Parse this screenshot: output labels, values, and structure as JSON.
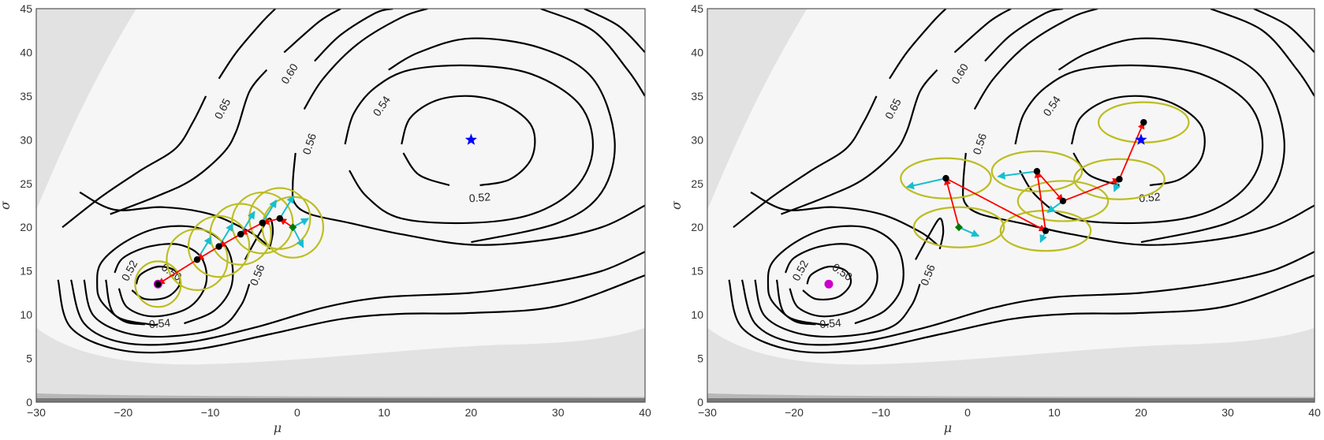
{
  "chart_data": [
    {
      "type": "contour",
      "panel": "left",
      "title": "",
      "xlabel": "μ",
      "ylabel": "σ",
      "xlim": [
        -30,
        40
      ],
      "ylim": [
        0,
        45
      ],
      "xticks": [
        "−30",
        "−20",
        "−10",
        "0",
        "10",
        "20",
        "30",
        "40"
      ],
      "yticks": [
        "0",
        "5",
        "10",
        "15",
        "20",
        "25",
        "30",
        "35",
        "40",
        "45"
      ],
      "grid": false,
      "contour_labels": [
        "0.65",
        "0.60",
        "0.56",
        "0.54",
        "0.52",
        "0.50",
        "0.52",
        "0.54",
        "0.56"
      ],
      "local_minimum": {
        "mu": -16,
        "sigma": 13.5,
        "marker": "magenta-circle"
      },
      "global_minimum": {
        "mu": 20,
        "sigma": 30,
        "marker": "blue-star"
      },
      "start_point": {
        "mu": -0.5,
        "sigma": 20,
        "marker": "green-diamond"
      },
      "trajectory": [
        {
          "mu": -0.5,
          "sigma": 20.0
        },
        {
          "mu": -2.0,
          "sigma": 21.0
        },
        {
          "mu": -4.0,
          "sigma": 20.5
        },
        {
          "mu": -6.5,
          "sigma": 19.2
        },
        {
          "mu": -9.0,
          "sigma": 17.8
        },
        {
          "mu": -11.5,
          "sigma": 16.3
        },
        {
          "mu": -16.0,
          "sigma": 13.5
        }
      ],
      "trust_region_shape": "circle",
      "trust_region_radius": 3.5,
      "series_colors": {
        "path": "#ff0000",
        "gradient": "#17becf",
        "region": "#bcbd22",
        "contour": "#000000"
      }
    },
    {
      "type": "contour",
      "panel": "right",
      "title": "",
      "xlabel": "μ",
      "ylabel": "σ",
      "xlim": [
        -30,
        40
      ],
      "ylim": [
        0,
        45
      ],
      "xticks": [
        "−30",
        "−20",
        "−10",
        "0",
        "10",
        "20",
        "30",
        "40"
      ],
      "yticks": [
        "0",
        "5",
        "10",
        "15",
        "20",
        "25",
        "30",
        "35",
        "40",
        "45"
      ],
      "grid": false,
      "contour_labels": [
        "0.65",
        "0.60",
        "0.56",
        "0.54",
        "0.52",
        "0.50",
        "0.52",
        "0.54",
        "0.56"
      ],
      "local_minimum": {
        "mu": -16,
        "sigma": 13.5,
        "marker": "magenta-circle"
      },
      "global_minimum": {
        "mu": 20,
        "sigma": 30,
        "marker": "blue-star"
      },
      "start_point": {
        "mu": -1,
        "sigma": 20,
        "marker": "green-diamond"
      },
      "trajectory": [
        {
          "mu": -1.0,
          "sigma": 20.0
        },
        {
          "mu": -2.5,
          "sigma": 25.6
        },
        {
          "mu": 9.0,
          "sigma": 19.6
        },
        {
          "mu": 8.0,
          "sigma": 26.4
        },
        {
          "mu": 11.0,
          "sigma": 23.0
        },
        {
          "mu": 17.5,
          "sigma": 25.5
        },
        {
          "mu": 20.3,
          "sigma": 32.0
        }
      ],
      "trust_region_shape": "ellipse",
      "trust_region_radii": [
        5.2,
        2.3
      ],
      "series_colors": {
        "path": "#ff0000",
        "gradient": "#17becf",
        "region": "#bcbd22",
        "contour": "#000000"
      }
    }
  ],
  "panels": {
    "left": {
      "xlabel": "μ",
      "ylabel": "σ"
    },
    "right": {
      "xlabel": "μ",
      "ylabel": "σ"
    }
  },
  "ticks": {
    "x": [
      "−30",
      "−20",
      "−10",
      "0",
      "10",
      "20",
      "30",
      "40"
    ],
    "y": [
      "0",
      "5",
      "10",
      "15",
      "20",
      "25",
      "30",
      "35",
      "40",
      "45"
    ]
  },
  "labels": {
    "c065": "0.65",
    "c060": "0.60",
    "c056": "0.56",
    "c054": "0.54",
    "c052": "0.52",
    "c050": "0.50"
  }
}
